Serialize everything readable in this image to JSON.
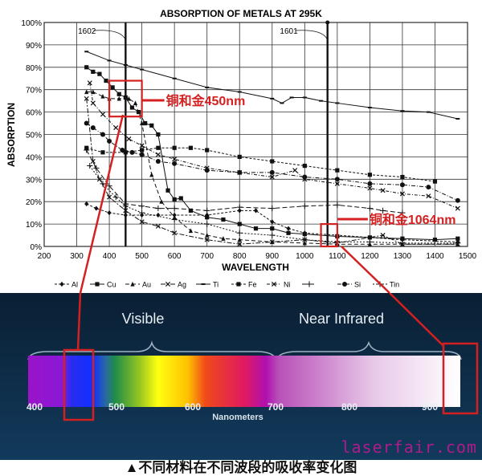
{
  "chart_data": {
    "type": "line",
    "title": "ABSORPTION OF METALS AT 295K",
    "xlabel": "WAVELENGTH",
    "ylabel": "ABSORPTION",
    "xlim": [
      200,
      1500
    ],
    "ylim": [
      0,
      100
    ],
    "xticks": [
      "200",
      "300",
      "400",
      "500",
      "600",
      "700",
      "800",
      "900",
      "1000",
      "1100",
      "1200",
      "1300",
      "1400",
      "1500"
    ],
    "yticks": [
      "0%",
      "10%",
      "20%",
      "30%",
      "40%",
      "50%",
      "60%",
      "70%",
      "80%",
      "90%",
      "100%"
    ],
    "grid": true,
    "legend_placement": "bottom",
    "vertical_markers": [
      {
        "x": 450,
        "label": "1602"
      },
      {
        "x": 1070,
        "label": "1601"
      }
    ],
    "annotations": [
      {
        "text": "铜和金450nm",
        "x_range": [
          400,
          500
        ],
        "y_range": [
          58,
          74
        ],
        "color": "#d42020"
      },
      {
        "text": "铜和金1064nm",
        "x_range": [
          1050,
          1100
        ],
        "y_range": [
          0,
          10
        ],
        "color": "#d42020"
      }
    ],
    "series": [
      {
        "name": "Al",
        "marker": "diamond",
        "dash": "3,2",
        "x": [
          330,
          360,
          400,
          450,
          500,
          550,
          600,
          700,
          800,
          850,
          900,
          950,
          1000,
          1100,
          1200,
          1300,
          1470
        ],
        "y": [
          19,
          17,
          15,
          14,
          14,
          14,
          14,
          14,
          16,
          16,
          11,
          8,
          6,
          5,
          4,
          3,
          2
        ]
      },
      {
        "name": "Cu",
        "marker": "square",
        "dash": "",
        "x": [
          330,
          350,
          370,
          390,
          410,
          430,
          450,
          470,
          490,
          510,
          530,
          550,
          580,
          600,
          620,
          650,
          700,
          750,
          800,
          850,
          900,
          950,
          1000,
          1100,
          1200,
          1300,
          1400,
          1470
        ],
        "y": [
          80,
          78,
          77,
          74,
          71,
          68,
          66.5,
          62,
          60,
          55,
          54,
          50,
          25,
          21,
          21.5,
          16,
          13,
          12,
          10,
          8,
          8,
          6,
          5.5,
          4.5,
          4,
          3.5,
          3,
          3.5
        ]
      },
      {
        "name": "Au",
        "marker": "triangle",
        "dash": "5,3",
        "x": [
          330,
          350,
          380,
          400,
          430,
          460,
          480,
          500,
          530,
          560,
          600,
          650,
          700,
          750,
          800,
          900,
          1000,
          1100,
          1200,
          1300,
          1470
        ],
        "y": [
          69,
          69,
          67,
          66,
          66,
          66,
          64,
          55,
          32,
          20,
          13,
          7,
          5,
          3.5,
          3,
          2,
          1.5,
          1,
          1,
          1,
          1
        ]
      },
      {
        "name": "Ag",
        "marker": "x",
        "dash": "6,2,2,2",
        "x": [
          330,
          350,
          370,
          400,
          450,
          500,
          550,
          600,
          700,
          800,
          900,
          1000,
          1100,
          1240,
          1300,
          1470
        ],
        "y": [
          66,
          38,
          30,
          22,
          16,
          11,
          9,
          6,
          3,
          1,
          2,
          3,
          1.5,
          5,
          1,
          1
        ]
      },
      {
        "name": "Ti",
        "marker": "dash",
        "dash": "",
        "x": [
          330,
          400,
          450,
          500,
          600,
          700,
          800,
          900,
          930,
          960,
          1000,
          1050,
          1100,
          1200,
          1300,
          1380,
          1470
        ],
        "y": [
          87,
          83,
          81,
          79,
          75,
          71,
          69,
          66,
          64,
          66.5,
          66.5,
          65,
          64,
          62,
          60.5,
          60,
          57
        ]
      },
      {
        "name": "Fe",
        "marker": "square",
        "dash": "3,2",
        "x": [
          330,
          380,
          450,
          500,
          550,
          600,
          650,
          700,
          800,
          900,
          1000,
          1100,
          1200,
          1300,
          1400
        ],
        "y": [
          44,
          42,
          42,
          43,
          44,
          44,
          44,
          43,
          40,
          38,
          36,
          34,
          32,
          31,
          29
        ]
      },
      {
        "name": "Ni",
        "marker": "x",
        "dash": "4,2,1,2",
        "x": [
          340,
          350,
          380,
          420,
          460,
          500,
          550,
          600,
          700,
          800,
          900,
          970,
          1000,
          1100,
          1200,
          1240,
          1300,
          1380,
          1470
        ],
        "y": [
          73,
          64,
          59,
          53,
          48,
          45,
          41,
          39,
          35,
          33,
          31,
          34,
          30,
          28,
          26,
          25,
          23.5,
          22.5,
          17
        ]
      },
      {
        "name": "",
        "marker": "plus",
        "dash": "6,3",
        "x": [
          330,
          360,
          400,
          450,
          500,
          550,
          600,
          700,
          800,
          900,
          1000,
          1100,
          1200,
          1240,
          1300
        ],
        "y": [
          43,
          35,
          27,
          19,
          18,
          17,
          17,
          16,
          17.5,
          17,
          18,
          18.5,
          17,
          16,
          15
        ]
      },
      {
        "name": "Si",
        "marker": "circle",
        "dash": "5,2,1,2",
        "x": [
          330,
          350,
          380,
          400,
          440,
          470,
          500,
          550,
          600,
          700,
          800,
          900,
          1000,
          1100,
          1200,
          1300,
          1380,
          1470
        ],
        "y": [
          55,
          53,
          50,
          47,
          43,
          42,
          41,
          38,
          37,
          34,
          33,
          33,
          31,
          30,
          28,
          27.5,
          26.5,
          20.5
        ]
      },
      {
        "name": "Tin",
        "marker": "plus",
        "dash": "2,2",
        "x": [
          340,
          380,
          420,
          450,
          500,
          600,
          700,
          800,
          900,
          1000,
          1100,
          1200,
          1300,
          1470
        ],
        "y": [
          36,
          28,
          22,
          18,
          15,
          12,
          10,
          6,
          5,
          3,
          2,
          2,
          1.5,
          1.5
        ]
      }
    ]
  },
  "spectrum": {
    "labels": {
      "visible": "Visible",
      "near_infrared": "Near Infrared",
      "unit": "Nanometers"
    },
    "ticks": [
      "400",
      "500",
      "600",
      "700",
      "800",
      "900"
    ]
  },
  "caption": "▲不同材料在不同波段的吸收率变化图",
  "watermark": "laserfair.com"
}
